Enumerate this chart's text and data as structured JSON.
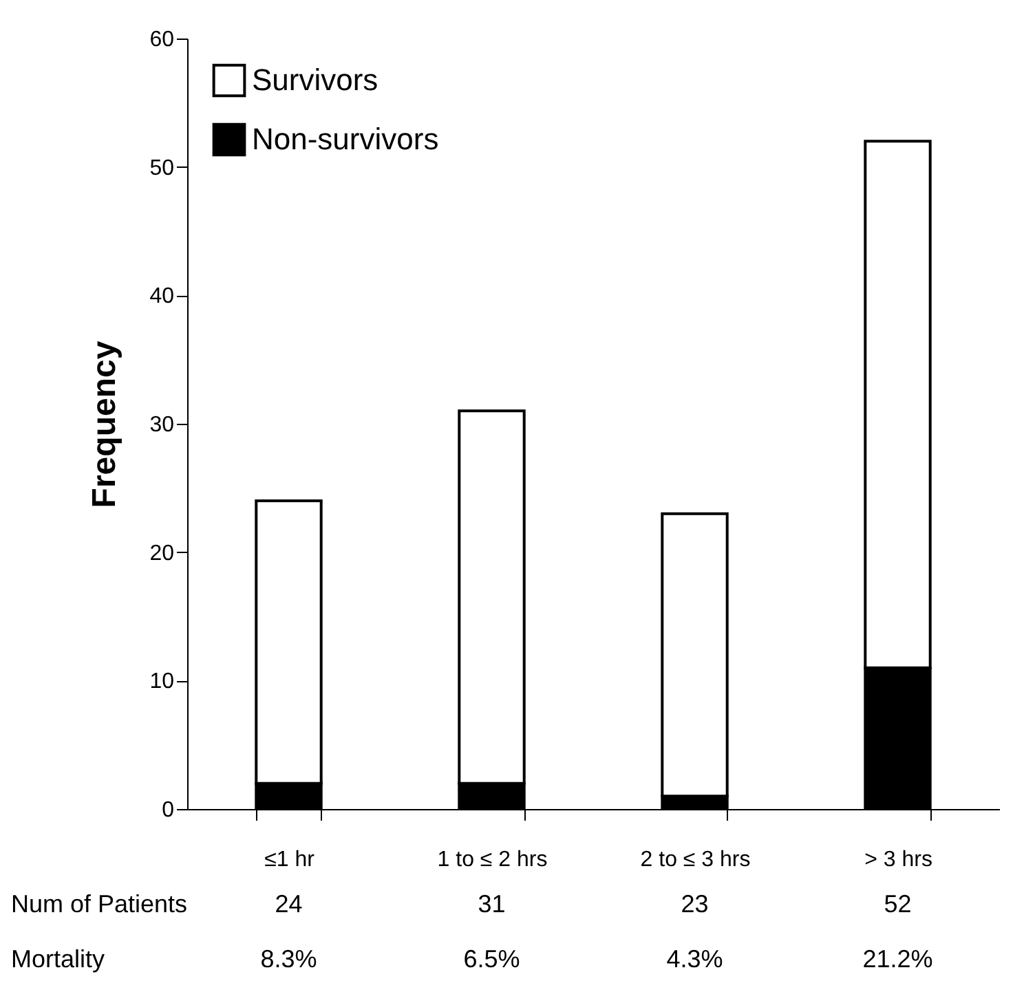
{
  "chart_data": {
    "type": "bar",
    "stacked": true,
    "ylabel": "Frequency",
    "categories": [
      "≤1 hr",
      "1 to ≤ 2 hrs",
      "2 to ≤ 3 hrs",
      "> 3 hrs"
    ],
    "series": [
      {
        "name": "Non-survivors",
        "color": "#000000",
        "values": [
          2,
          2,
          1,
          11
        ]
      },
      {
        "name": "Survivors",
        "color": "#ffffff",
        "values": [
          22,
          29,
          22,
          41
        ]
      }
    ],
    "ylim": [
      0,
      60
    ],
    "yticks": [
      0,
      10,
      20,
      30,
      40,
      50,
      60
    ],
    "grid": false,
    "legend": "top left",
    "annotations": [
      "Num of Patients",
      "24",
      "31",
      "23",
      "52",
      "Mortality",
      "8.3%",
      "6.5%",
      "4.3%",
      "21.2%"
    ]
  }
}
